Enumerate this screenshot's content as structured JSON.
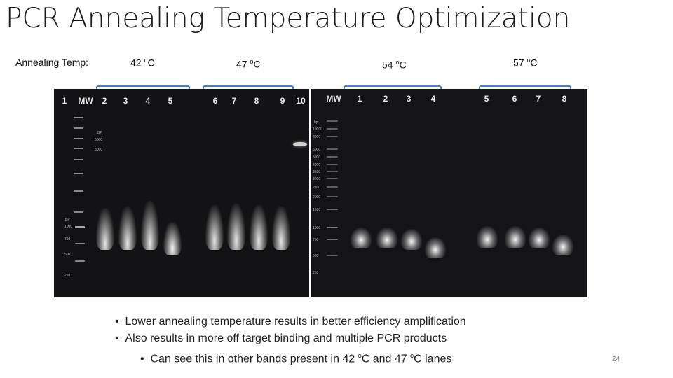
{
  "title": "PCR Annealing Temperature Optimization",
  "header_label": "Annealing Temp:",
  "temps": [
    {
      "value": "42 ",
      "sup": "o",
      "unit": "C"
    },
    {
      "value": "47 ",
      "sup": "o",
      "unit": "C"
    },
    {
      "value": "54 ",
      "sup": "o",
      "unit": "C"
    },
    {
      "value": "57 ",
      "sup": "o",
      "unit": "C"
    }
  ],
  "gel_left": {
    "lanes": [
      "1",
      "MW",
      "2",
      "3",
      "4",
      "5",
      "6",
      "7",
      "8",
      "9",
      "10"
    ],
    "ladder_labels": [
      "BP",
      "5000",
      "3000",
      "BP",
      "1000",
      "750",
      "500",
      "250"
    ]
  },
  "gel_right": {
    "lanes": [
      "MW",
      "1",
      "2",
      "3",
      "4",
      "5",
      "6",
      "7",
      "8"
    ],
    "ladder_labels": [
      "bp",
      "10000",
      "8000",
      "6000",
      "5000",
      "4000",
      "3500",
      "3000",
      "2500",
      "2000",
      "1500",
      "1000",
      "750",
      "500",
      "250"
    ]
  },
  "bullets": [
    {
      "text": "Lower annealing temperature results in better efficiency amplification"
    },
    {
      "text": "Also results in more off target binding and multiple PCR products"
    },
    {
      "pre": "Can see this in other bands present in 42 ",
      "sup1": "o",
      "mid": "C and 47 ",
      "sup2": "o",
      "post": "C lanes"
    }
  ],
  "page_number": "24",
  "colors": {
    "bracket": "#4a7ebb",
    "gel": "#0e0e10"
  }
}
